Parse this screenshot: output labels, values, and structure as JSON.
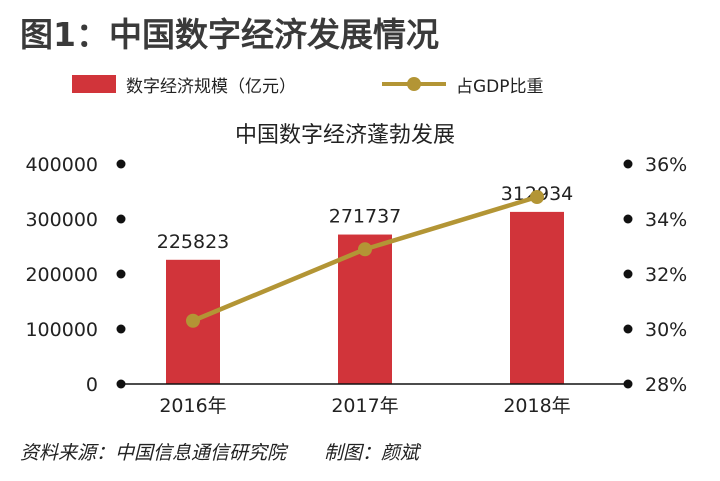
{
  "figure_title": "图1：中国数字经济发展情况",
  "source_text": "资料来源：中国信息通信研究院",
  "credit_text": "制图：颜斌",
  "colors": {
    "bar": "#d1343a",
    "line": "#b39535",
    "axis": "#111111",
    "text": "#222222"
  },
  "chart_data": {
    "type": "bar",
    "title": "中国数字经济蓬勃发展",
    "categories": [
      "2016年",
      "2017年",
      "2018年"
    ],
    "series": [
      {
        "name": "数字经济规模（亿元）",
        "type": "bar",
        "axis": "left",
        "values": [
          225823,
          271737,
          312934
        ],
        "data_labels": [
          "225823",
          "271737",
          "312934"
        ]
      },
      {
        "name": "占GDP比重",
        "type": "line",
        "axis": "right",
        "values": [
          30.3,
          32.9,
          34.8
        ]
      }
    ],
    "left_axis": {
      "ylim": [
        0,
        400000
      ],
      "ticks": [
        0,
        100000,
        200000,
        300000,
        400000
      ],
      "tick_labels": [
        "0",
        "100000",
        "200000",
        "300000",
        "400000"
      ]
    },
    "right_axis": {
      "ylim": [
        28,
        36
      ],
      "ticks": [
        28,
        30,
        32,
        34,
        36
      ],
      "tick_labels": [
        "28%",
        "30%",
        "32%",
        "34%",
        "36%"
      ]
    },
    "legend_position": "top",
    "grid": false
  }
}
